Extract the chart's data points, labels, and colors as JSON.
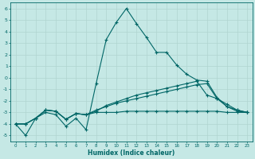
{
  "xlabel": "Humidex (Indice chaleur)",
  "xlim": [
    -0.5,
    23.5
  ],
  "ylim": [
    -5.5,
    6.5
  ],
  "bg_color": "#c5e8e5",
  "grid_color": "#b0d5d0",
  "line_color": "#006666",
  "lines": [
    {
      "x": [
        0,
        1,
        2,
        3,
        4,
        5,
        6,
        7,
        8,
        9,
        10,
        11,
        12,
        13,
        14,
        15,
        16,
        17,
        18,
        19,
        20,
        21,
        22,
        23
      ],
      "y": [
        -4.0,
        -5.0,
        -3.5,
        -3.0,
        -3.2,
        -4.2,
        -3.5,
        -4.5,
        -0.5,
        3.3,
        4.8,
        6.0,
        4.7,
        3.5,
        2.2,
        2.2,
        1.1,
        0.3,
        -0.2,
        -0.3,
        -1.7,
        -2.5,
        -2.8,
        -3.0
      ]
    },
    {
      "x": [
        0,
        1,
        2,
        3,
        4,
        5,
        6,
        7,
        8,
        9,
        10,
        11,
        12,
        13,
        14,
        15,
        16,
        17,
        18,
        19,
        20,
        21,
        22,
        23
      ],
      "y": [
        -4.0,
        -4.0,
        -3.5,
        -2.8,
        -2.9,
        -3.6,
        -3.1,
        -3.2,
        -2.9,
        -2.4,
        -2.1,
        -1.8,
        -1.5,
        -1.3,
        -1.1,
        -0.9,
        -0.7,
        -0.5,
        -0.3,
        -1.5,
        -1.8,
        -2.3,
        -2.8,
        -3.0
      ]
    },
    {
      "x": [
        0,
        1,
        2,
        3,
        4,
        5,
        6,
        7,
        8,
        9,
        10,
        11,
        12,
        13,
        14,
        15,
        16,
        17,
        18,
        19,
        20,
        21,
        22,
        23
      ],
      "y": [
        -4.0,
        -4.0,
        -3.5,
        -2.8,
        -2.9,
        -3.6,
        -3.1,
        -3.2,
        -3.0,
        -3.0,
        -3.0,
        -2.9,
        -2.9,
        -2.9,
        -2.9,
        -2.9,
        -2.9,
        -2.9,
        -2.9,
        -2.9,
        -2.9,
        -3.0,
        -3.0,
        -3.0
      ]
    },
    {
      "x": [
        0,
        1,
        2,
        3,
        4,
        5,
        6,
        7,
        8,
        9,
        10,
        11,
        12,
        13,
        14,
        15,
        16,
        17,
        18,
        19,
        20,
        21,
        22,
        23
      ],
      "y": [
        -4.0,
        -4.0,
        -3.5,
        -2.8,
        -2.9,
        -3.6,
        -3.1,
        -3.2,
        -2.8,
        -2.5,
        -2.2,
        -2.0,
        -1.8,
        -1.6,
        -1.4,
        -1.2,
        -1.0,
        -0.8,
        -0.6,
        -0.5,
        -1.8,
        -2.5,
        -2.9,
        -3.0
      ]
    }
  ],
  "yticks": [
    -5,
    -4,
    -3,
    -2,
    -1,
    0,
    1,
    2,
    3,
    4,
    5,
    6
  ],
  "xticks": [
    0,
    1,
    2,
    3,
    4,
    5,
    6,
    7,
    8,
    9,
    10,
    11,
    12,
    13,
    14,
    15,
    16,
    17,
    18,
    19,
    20,
    21,
    22,
    23
  ]
}
